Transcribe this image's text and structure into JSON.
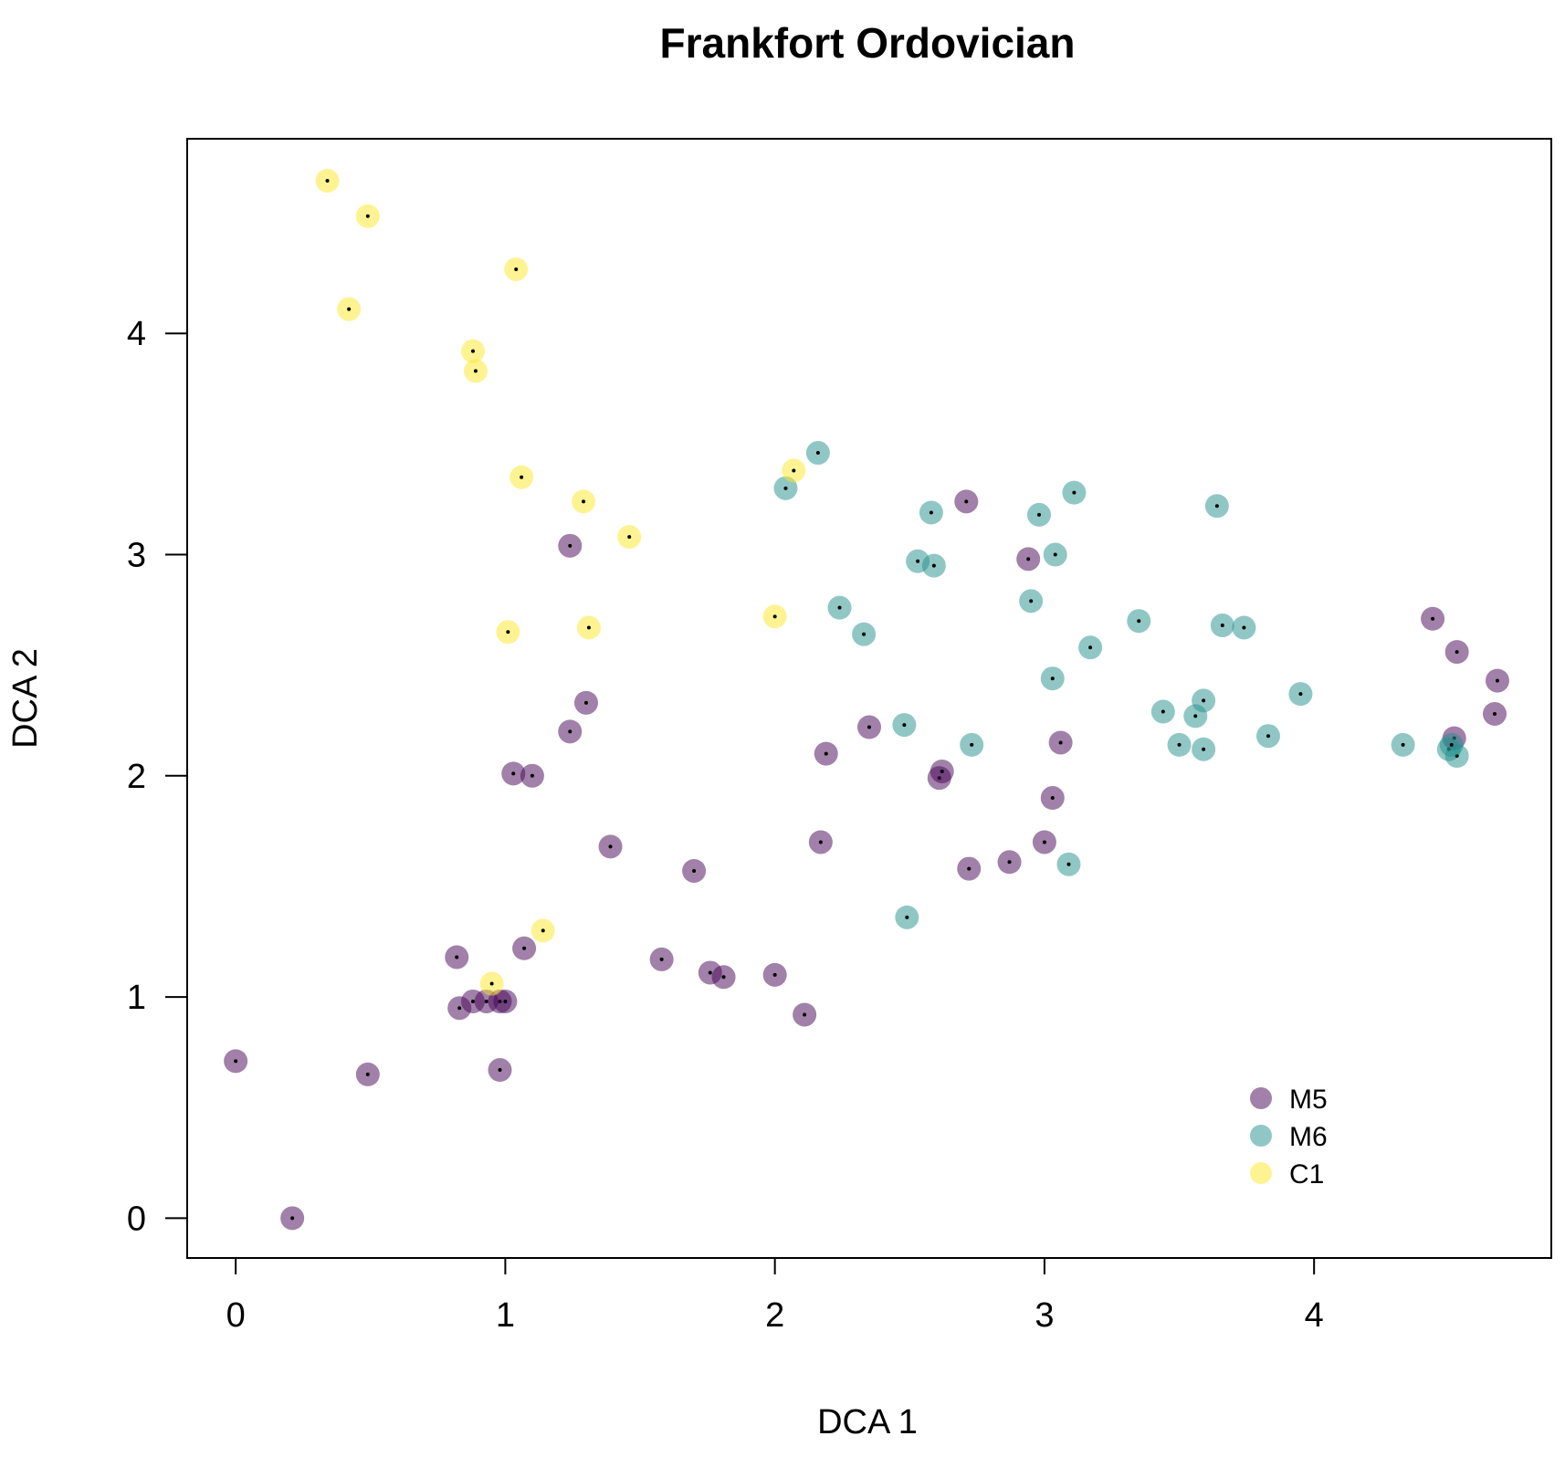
{
  "chart_data": {
    "type": "scatter",
    "title": "Frankfort Ordovician",
    "xlabel": "DCA 1",
    "ylabel": "DCA 2",
    "xlim": [
      -0.18,
      4.88
    ],
    "ylim": [
      -0.18,
      4.88
    ],
    "xticks": [
      0,
      1,
      2,
      3,
      4
    ],
    "yticks": [
      0,
      1,
      2,
      3,
      4
    ],
    "grid": false,
    "legend_position": "bottom-right",
    "series": [
      {
        "name": "M5",
        "color": "#440154",
        "points": [
          [
            0.0,
            0.71
          ],
          [
            0.21,
            0.0
          ],
          [
            0.49,
            0.65
          ],
          [
            0.82,
            1.18
          ],
          [
            0.83,
            0.95
          ],
          [
            0.88,
            0.98
          ],
          [
            0.93,
            0.98
          ],
          [
            0.98,
            0.98
          ],
          [
            1.0,
            0.98
          ],
          [
            0.98,
            0.67
          ],
          [
            1.07,
            1.22
          ],
          [
            1.03,
            2.01
          ],
          [
            1.1,
            2.0
          ],
          [
            1.24,
            2.2
          ],
          [
            1.3,
            2.33
          ],
          [
            1.24,
            3.04
          ],
          [
            1.39,
            1.68
          ],
          [
            1.58,
            1.17
          ],
          [
            1.7,
            1.57
          ],
          [
            1.76,
            1.11
          ],
          [
            1.81,
            1.09
          ],
          [
            2.0,
            1.1
          ],
          [
            2.11,
            0.92
          ],
          [
            2.17,
            1.7
          ],
          [
            2.19,
            2.1
          ],
          [
            2.35,
            2.22
          ],
          [
            2.61,
            1.99
          ],
          [
            2.62,
            2.02
          ],
          [
            2.72,
            1.58
          ],
          [
            2.71,
            3.24
          ],
          [
            2.87,
            1.61
          ],
          [
            2.94,
            2.98
          ],
          [
            3.0,
            1.7
          ],
          [
            3.03,
            1.9
          ],
          [
            3.06,
            2.15
          ],
          [
            4.44,
            2.71
          ],
          [
            4.53,
            2.56
          ],
          [
            4.52,
            2.17
          ],
          [
            4.68,
            2.43
          ],
          [
            4.67,
            2.28
          ]
        ]
      },
      {
        "name": "M6",
        "color": "#21908C",
        "points": [
          [
            2.04,
            3.3
          ],
          [
            2.16,
            3.46
          ],
          [
            2.24,
            2.76
          ],
          [
            2.33,
            2.64
          ],
          [
            2.48,
            2.23
          ],
          [
            2.49,
            1.36
          ],
          [
            2.53,
            2.97
          ],
          [
            2.58,
            3.19
          ],
          [
            2.59,
            2.95
          ],
          [
            2.73,
            2.14
          ],
          [
            2.95,
            2.79
          ],
          [
            2.98,
            3.18
          ],
          [
            3.03,
            2.44
          ],
          [
            3.04,
            3.0
          ],
          [
            3.09,
            1.6
          ],
          [
            3.11,
            3.28
          ],
          [
            3.17,
            2.58
          ],
          [
            3.35,
            2.7
          ],
          [
            3.44,
            2.29
          ],
          [
            3.5,
            2.14
          ],
          [
            3.56,
            2.27
          ],
          [
            3.59,
            2.34
          ],
          [
            3.59,
            2.12
          ],
          [
            3.64,
            3.22
          ],
          [
            3.66,
            2.68
          ],
          [
            3.74,
            2.67
          ],
          [
            3.83,
            2.18
          ],
          [
            3.95,
            2.37
          ],
          [
            4.33,
            2.14
          ],
          [
            4.5,
            2.12
          ],
          [
            4.53,
            2.09
          ],
          [
            4.51,
            2.14
          ]
        ]
      },
      {
        "name": "C1",
        "color": "#FDE725",
        "points": [
          [
            0.34,
            4.69
          ],
          [
            0.49,
            4.53
          ],
          [
            0.42,
            4.11
          ],
          [
            0.88,
            3.92
          ],
          [
            0.89,
            3.83
          ],
          [
            1.04,
            4.29
          ],
          [
            1.06,
            3.35
          ],
          [
            1.29,
            3.24
          ],
          [
            1.46,
            3.08
          ],
          [
            1.01,
            2.65
          ],
          [
            1.31,
            2.67
          ],
          [
            2.0,
            2.72
          ],
          [
            2.07,
            3.38
          ],
          [
            1.14,
            1.3
          ],
          [
            0.95,
            1.06
          ]
        ]
      }
    ]
  }
}
